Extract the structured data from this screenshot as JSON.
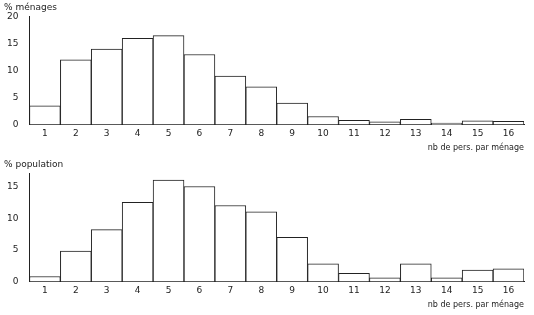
{
  "chart_data": [
    {
      "type": "bar",
      "y_label": "% ménages",
      "x_label": "nb de pers. par ménage",
      "categories": [
        "1",
        "2",
        "3",
        "4",
        "5",
        "6",
        "7",
        "8",
        "9",
        "10",
        "11",
        "12",
        "13",
        "14",
        "15",
        "16"
      ],
      "values": [
        3.5,
        12,
        14,
        16,
        16.5,
        13,
        9,
        7,
        4,
        1.5,
        0.8,
        0.5,
        1,
        0.3,
        0.7,
        0.6
      ],
      "color": "#ffffff",
      "ylim": [
        0,
        20
      ],
      "yticks": [
        0,
        5,
        10,
        15,
        20
      ],
      "grid": false
    },
    {
      "type": "bar",
      "y_label": "% population",
      "x_label": "nb de pers. par ménage",
      "categories": [
        "1",
        "2",
        "3",
        "4",
        "5",
        "6",
        "7",
        "8",
        "9",
        "10",
        "11",
        "12",
        "13",
        "14",
        "15",
        "16"
      ],
      "values": [
        0.8,
        4.8,
        8.2,
        12.5,
        16,
        15,
        12,
        11,
        7,
        2.8,
        1.3,
        0.6,
        2.8,
        0.6,
        1.8,
        2
      ],
      "color": "#ffffff",
      "ylim": [
        0,
        17
      ],
      "yticks": [
        0,
        5,
        10,
        15
      ],
      "grid": false
    }
  ]
}
